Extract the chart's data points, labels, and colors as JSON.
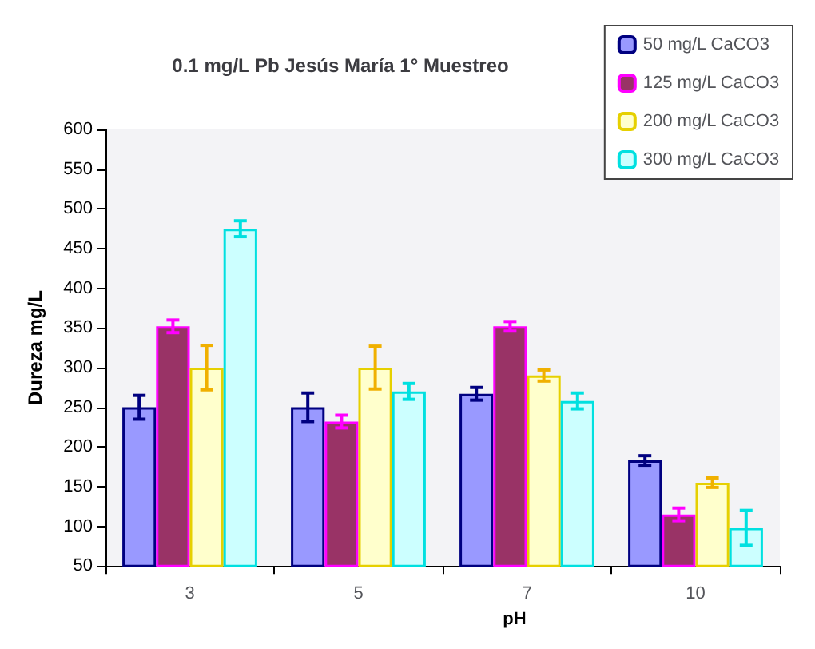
{
  "chart_data": {
    "type": "bar",
    "title": "0.1 mg/L Pb Jesús María 1° Muestreo",
    "xlabel": "pH",
    "ylabel": "Dureza mg/L",
    "categories": [
      "3",
      "5",
      "7",
      "10"
    ],
    "series": [
      {
        "name": "50 mg/L CaCO3",
        "color": "#9999ff",
        "values": [
          250,
          250,
          267,
          183
        ],
        "errors": [
          15,
          18,
          8,
          6
        ]
      },
      {
        "name": "125 mg/L CaCO3",
        "color": "#993366",
        "values": [
          352,
          232,
          352,
          115
        ],
        "errors": [
          8,
          8,
          6,
          8
        ]
      },
      {
        "name": "200 mg/L CaCO3",
        "color": "#ffffcc",
        "values": [
          300,
          300,
          290,
          155
        ],
        "errors": [
          28,
          27,
          7,
          6
        ]
      },
      {
        "name": "300 mg/L CaCO3",
        "color": "#ccffff",
        "values": [
          475,
          270,
          258,
          98
        ],
        "errors": [
          10,
          10,
          10,
          22
        ]
      }
    ],
    "ylim": [
      50,
      600
    ],
    "yticks": [
      50,
      100,
      150,
      200,
      250,
      300,
      350,
      400,
      450,
      500,
      550,
      600
    ],
    "grid": false,
    "legend": "top right"
  }
}
